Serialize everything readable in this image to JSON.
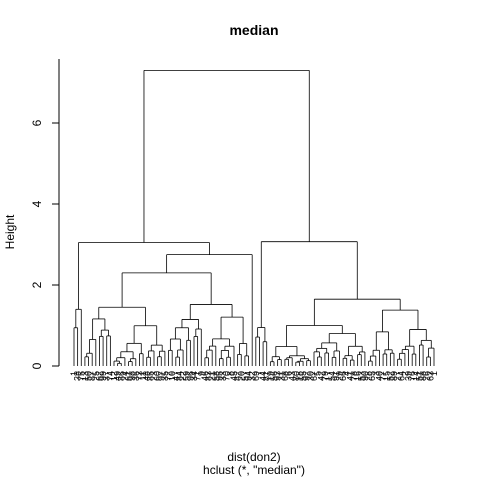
{
  "chart_data": {
    "type": "dendrogram",
    "title": "median",
    "ylabel": "Height",
    "xlabel": "dist(don2)",
    "sublabel": "hclust (*, \"median\")",
    "ylim": [
      0,
      7.5
    ],
    "yticks": [
      0,
      2,
      4,
      6
    ],
    "leaf_count": 100,
    "merge_heights": {
      "root": 7.3,
      "left_main": 3.05,
      "right_main": 3.07,
      "left_sub": 2.75,
      "left_mid": 2.3,
      "left_small_cluster": 1.4,
      "left_mid_a": 1.45,
      "left_mid_b": 1.52,
      "right_sub": 1.65,
      "right_a": 1.0,
      "right_b": 1.38
    }
  }
}
